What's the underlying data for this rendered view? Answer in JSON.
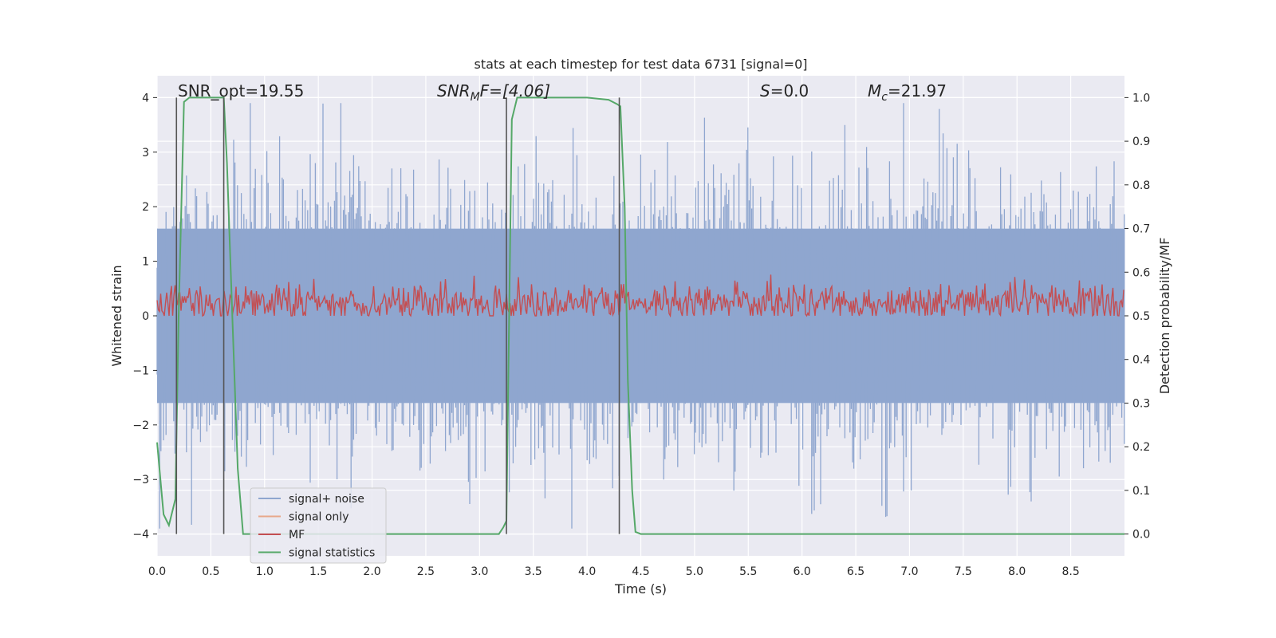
{
  "chart_data": {
    "type": "line",
    "title": "stats at each timestep for test data 6731 [signal=0]",
    "xlabel": "Time (s)",
    "ylabel": "Whitened strain",
    "ylabel_right": "Detection probability/MF",
    "xlim": [
      0.0,
      9.0
    ],
    "ylim": [
      -4.4,
      4.4
    ],
    "ylim_right": [
      -0.05,
      1.05
    ],
    "x_ticks": [
      "0.0",
      "0.5",
      "1.0",
      "1.5",
      "2.0",
      "2.5",
      "3.0",
      "3.5",
      "4.0",
      "4.5",
      "5.0",
      "5.5",
      "6.0",
      "6.5",
      "7.0",
      "7.5",
      "8.0",
      "8.5"
    ],
    "y_ticks": [
      "4",
      "3",
      "2",
      "1",
      "0",
      "−1",
      "−2",
      "−3",
      "−4"
    ],
    "y_ticks_right": [
      "1.0",
      "0.9",
      "0.8",
      "0.7",
      "0.6",
      "0.5",
      "0.4",
      "0.3",
      "0.2",
      "0.1",
      "0.0"
    ],
    "grid": true,
    "legend_position": "lower-left",
    "legend": [
      {
        "label": "signal+ noise",
        "color": "#8fa6cf"
      },
      {
        "label": "signal only",
        "color": "#e8a88a"
      },
      {
        "label": "MF",
        "color": "#c44e52"
      },
      {
        "label": "signal statistics",
        "color": "#55a868"
      }
    ],
    "annotations": {
      "snr_opt": "SNR_opt=19.55",
      "snr_mf_base": "SNR",
      "snr_mf_sub": "M",
      "snr_mf_rest": "F=[4.06]",
      "s_sym": "S",
      "s_val": "=0.0",
      "mc_sym": "M",
      "mc_sub": "c",
      "mc_val": "=21.97"
    },
    "series": [
      {
        "name": "signal+ noise",
        "color": "#8fa6cf",
        "envelope": "noise band, amplitude ≈ ±1.6 typical, peaks up to ≈ ±3.9",
        "typical_amplitude": 1.6,
        "peak_amplitude": 3.9
      },
      {
        "name": "MF",
        "axis": "right",
        "color": "#c44e52",
        "baseline": 0.53,
        "peak_range": [
          0.5,
          0.64
        ]
      },
      {
        "name": "signal statistics",
        "axis": "right",
        "color": "#55a868",
        "x": [
          0.0,
          0.06,
          0.11,
          0.17,
          0.2,
          0.25,
          0.3,
          0.35,
          0.4,
          0.5,
          0.55,
          0.6,
          0.62,
          0.65,
          0.7,
          0.75,
          0.8,
          1.0,
          2.0,
          3.0,
          3.18,
          3.22,
          3.25,
          3.27,
          3.3,
          3.35,
          3.5,
          4.0,
          4.2,
          4.28,
          4.31,
          4.35,
          4.38,
          4.42,
          4.45,
          4.5,
          5.0,
          9.0
        ],
        "y": [
          0.21,
          0.045,
          0.02,
          0.08,
          0.5,
          0.99,
          1.0,
          1.0,
          1.0,
          1.0,
          1.0,
          1.0,
          1.0,
          0.85,
          0.5,
          0.15,
          0.0,
          0.0,
          0.0,
          0.0,
          0.0,
          0.015,
          0.03,
          0.4,
          0.95,
          1.0,
          1.0,
          1.0,
          0.995,
          0.985,
          0.98,
          0.75,
          0.35,
          0.1,
          0.005,
          0.0,
          0.0,
          0.0
        ]
      }
    ],
    "vertical_lines_x": [
      0.18,
      0.62,
      3.25,
      4.3
    ],
    "vertical_lines_color": "#555555"
  }
}
